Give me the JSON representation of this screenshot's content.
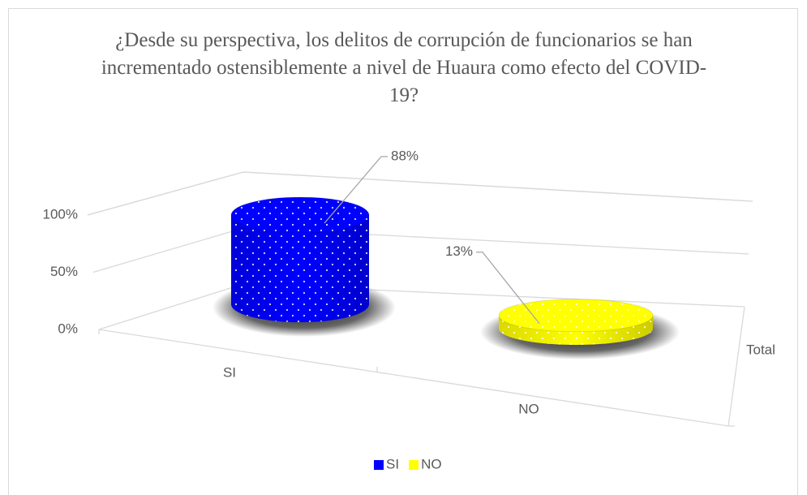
{
  "chart_data": {
    "type": "bar3d",
    "title": "¿Desde su perspectiva, los delitos de corrupción de funcionarios se han incrementado ostensiblemente a nivel de Huaura como efecto del COVID-19?",
    "categories": [
      "Total"
    ],
    "series": [
      {
        "name": "SI",
        "color": "#0000ff",
        "values": [
          88
        ],
        "value_labels": [
          "88%"
        ]
      },
      {
        "name": "NO",
        "color": "#ffff00",
        "values": [
          13
        ],
        "value_labels": [
          "13%"
        ]
      }
    ],
    "ylim": [
      0,
      100
    ],
    "yticks": [
      {
        "value": 0,
        "label": "0%"
      },
      {
        "value": 50,
        "label": "50%"
      },
      {
        "value": 100,
        "label": "100%"
      }
    ],
    "grid": true,
    "legend": "bottom"
  }
}
